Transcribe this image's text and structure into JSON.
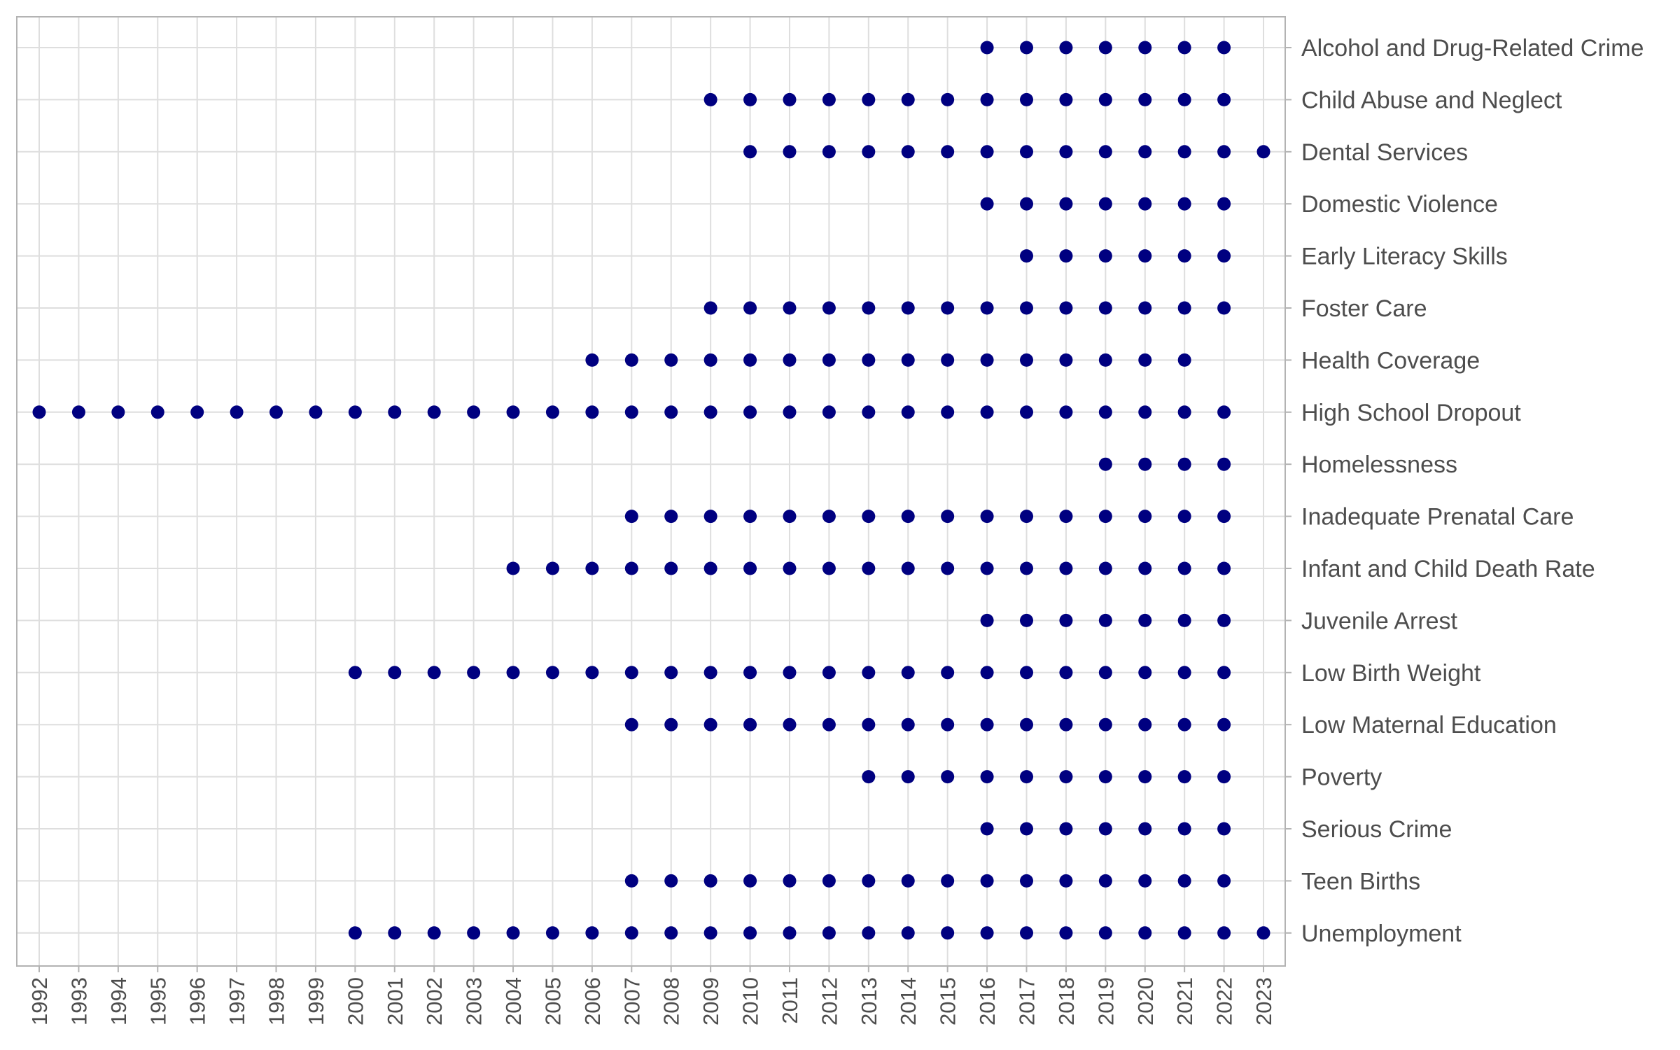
{
  "chart_data": {
    "type": "scatter",
    "title": "",
    "xlabel": "",
    "ylabel": "",
    "xlim": [
      1991.45,
      2023.55
    ],
    "grid": true,
    "legend": "none",
    "point_color": "#000080",
    "x": [
      1992,
      1993,
      1994,
      1995,
      1996,
      1997,
      1998,
      1999,
      2000,
      2001,
      2002,
      2003,
      2004,
      2005,
      2006,
      2007,
      2008,
      2009,
      2010,
      2011,
      2012,
      2013,
      2014,
      2015,
      2016,
      2017,
      2018,
      2019,
      2020,
      2021,
      2022,
      2023
    ],
    "categories": [
      "Alcohol and Drug-Related Crime",
      "Child Abuse and Neglect",
      "Dental Services",
      "Domestic Violence",
      "Early Literacy Skills",
      "Foster Care",
      "Health Coverage",
      "High School Dropout",
      "Homelessness",
      "Inadequate Prenatal Care",
      "Infant and Child Death Rate",
      "Juvenile Arrest",
      "Low Birth Weight",
      "Low Maternal Education",
      "Poverty",
      "Serious Crime",
      "Teen Births",
      "Unemployment"
    ],
    "series": [
      {
        "category": "Alcohol and Drug-Related Crime",
        "years": [
          2016,
          2017,
          2018,
          2019,
          2020,
          2021,
          2022
        ]
      },
      {
        "category": "Child Abuse and Neglect",
        "years": [
          2009,
          2010,
          2011,
          2012,
          2013,
          2014,
          2015,
          2016,
          2017,
          2018,
          2019,
          2020,
          2021,
          2022
        ]
      },
      {
        "category": "Dental Services",
        "years": [
          2010,
          2011,
          2012,
          2013,
          2014,
          2015,
          2016,
          2017,
          2018,
          2019,
          2020,
          2021,
          2022,
          2023
        ]
      },
      {
        "category": "Domestic Violence",
        "years": [
          2016,
          2017,
          2018,
          2019,
          2020,
          2021,
          2022
        ]
      },
      {
        "category": "Early Literacy Skills",
        "years": [
          2017,
          2018,
          2019,
          2020,
          2021,
          2022
        ]
      },
      {
        "category": "Foster Care",
        "years": [
          2009,
          2010,
          2011,
          2012,
          2013,
          2014,
          2015,
          2016,
          2017,
          2018,
          2019,
          2020,
          2021,
          2022
        ]
      },
      {
        "category": "Health Coverage",
        "years": [
          2006,
          2007,
          2008,
          2009,
          2010,
          2011,
          2012,
          2013,
          2014,
          2015,
          2016,
          2017,
          2018,
          2019,
          2020,
          2021
        ]
      },
      {
        "category": "High School Dropout",
        "years": [
          1992,
          1993,
          1994,
          1995,
          1996,
          1997,
          1998,
          1999,
          2000,
          2001,
          2002,
          2003,
          2004,
          2005,
          2006,
          2007,
          2008,
          2009,
          2010,
          2011,
          2012,
          2013,
          2014,
          2015,
          2016,
          2017,
          2018,
          2019,
          2020,
          2021,
          2022
        ]
      },
      {
        "category": "Homelessness",
        "years": [
          2019,
          2020,
          2021,
          2022
        ]
      },
      {
        "category": "Inadequate Prenatal Care",
        "years": [
          2007,
          2008,
          2009,
          2010,
          2011,
          2012,
          2013,
          2014,
          2015,
          2016,
          2017,
          2018,
          2019,
          2020,
          2021,
          2022
        ]
      },
      {
        "category": "Infant and Child Death Rate",
        "years": [
          2004,
          2005,
          2006,
          2007,
          2008,
          2009,
          2010,
          2011,
          2012,
          2013,
          2014,
          2015,
          2016,
          2017,
          2018,
          2019,
          2020,
          2021,
          2022
        ]
      },
      {
        "category": "Juvenile Arrest",
        "years": [
          2016,
          2017,
          2018,
          2019,
          2020,
          2021,
          2022
        ]
      },
      {
        "category": "Low Birth Weight",
        "years": [
          2000,
          2001,
          2002,
          2003,
          2004,
          2005,
          2006,
          2007,
          2008,
          2009,
          2010,
          2011,
          2012,
          2013,
          2014,
          2015,
          2016,
          2017,
          2018,
          2019,
          2020,
          2021,
          2022
        ]
      },
      {
        "category": "Low Maternal Education",
        "years": [
          2007,
          2008,
          2009,
          2010,
          2011,
          2012,
          2013,
          2014,
          2015,
          2016,
          2017,
          2018,
          2019,
          2020,
          2021,
          2022
        ]
      },
      {
        "category": "Poverty",
        "years": [
          2013,
          2014,
          2015,
          2016,
          2017,
          2018,
          2019,
          2020,
          2021,
          2022
        ]
      },
      {
        "category": "Serious Crime",
        "years": [
          2016,
          2017,
          2018,
          2019,
          2020,
          2021,
          2022
        ]
      },
      {
        "category": "Teen Births",
        "years": [
          2007,
          2008,
          2009,
          2010,
          2011,
          2012,
          2013,
          2014,
          2015,
          2016,
          2017,
          2018,
          2019,
          2020,
          2021,
          2022
        ]
      },
      {
        "category": "Unemployment",
        "years": [
          2000,
          2001,
          2002,
          2003,
          2004,
          2005,
          2006,
          2007,
          2008,
          2009,
          2010,
          2011,
          2012,
          2013,
          2014,
          2015,
          2016,
          2017,
          2018,
          2019,
          2020,
          2021,
          2022,
          2023
        ]
      }
    ]
  }
}
